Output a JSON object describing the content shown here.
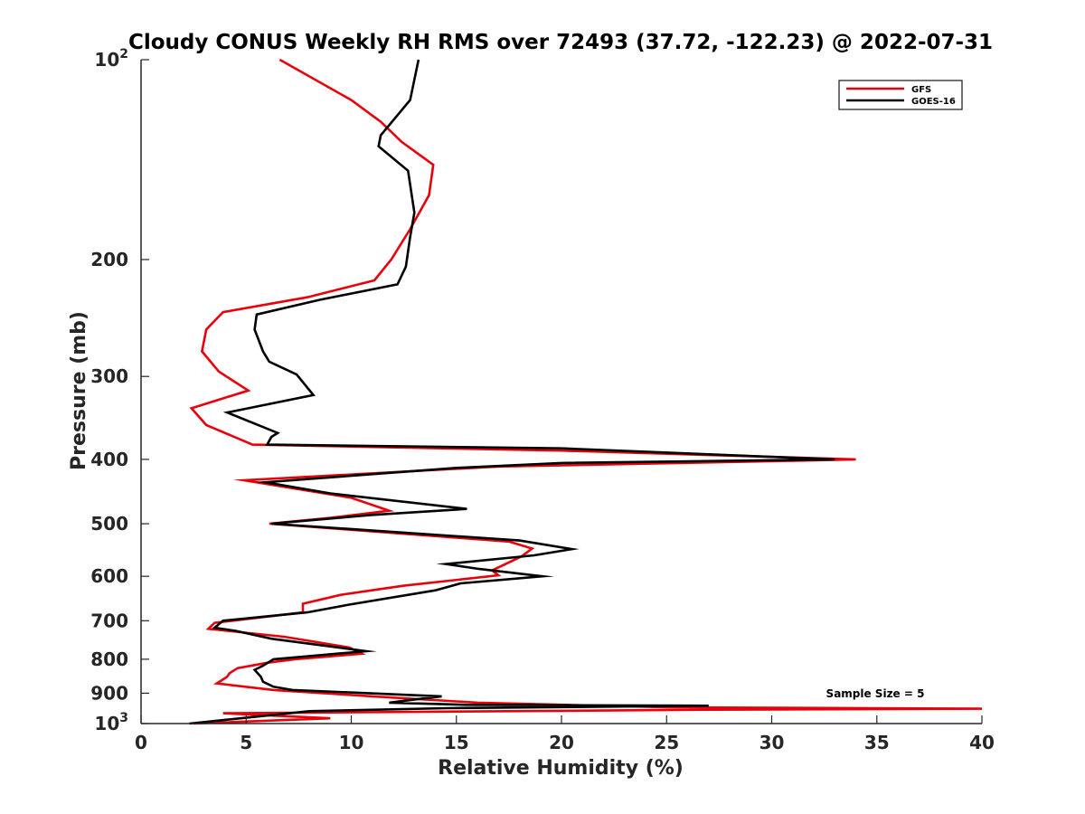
{
  "chart_data": {
    "type": "line",
    "title": "Cloudy CONUS Weekly RH RMS over 72493 (37.72, -122.23) @ 2022-07-31",
    "xlabel": "Relative Humidity (%)",
    "ylabel": "Pressure (mb)",
    "xlim": [
      0,
      40
    ],
    "ylim": [
      100,
      1000
    ],
    "y_scale": "log",
    "y_reversed": true,
    "x_ticks": [
      0,
      5,
      10,
      15,
      20,
      25,
      30,
      35,
      40
    ],
    "x_tick_labels": [
      "0",
      "5",
      "10",
      "15",
      "20",
      "25",
      "30",
      "35",
      "40"
    ],
    "y_ticks": [
      100,
      200,
      300,
      400,
      500,
      600,
      700,
      800,
      900,
      1000
    ],
    "y_tick_labels": [
      {
        "base": "10",
        "sup": "2"
      },
      {
        "base": "200",
        "sup": ""
      },
      {
        "base": "300",
        "sup": ""
      },
      {
        "base": "400",
        "sup": ""
      },
      {
        "base": "500",
        "sup": ""
      },
      {
        "base": "600",
        "sup": ""
      },
      {
        "base": "700",
        "sup": ""
      },
      {
        "base": "800",
        "sup": ""
      },
      {
        "base": "900",
        "sup": ""
      },
      {
        "base": "10",
        "sup": "3"
      }
    ],
    "grid": false,
    "legend_position": "top-right",
    "annotation": "Sample Size = 5",
    "series": [
      {
        "name": "GFS",
        "color": "#e8000b",
        "points": [
          [
            6.6,
            100
          ],
          [
            10,
            115
          ],
          [
            11.4,
            124
          ],
          [
            12.4,
            133
          ],
          [
            13.9,
            144
          ],
          [
            13.7,
            160
          ],
          [
            12.8,
            180
          ],
          [
            11.9,
            200
          ],
          [
            11.1,
            215
          ],
          [
            7.9,
            228
          ],
          [
            3.9,
            240
          ],
          [
            3.1,
            255
          ],
          [
            2.9,
            275
          ],
          [
            3.7,
            295
          ],
          [
            5.1,
            315
          ],
          [
            2.4,
            335
          ],
          [
            3.1,
            355
          ],
          [
            5.3,
            380
          ],
          [
            20,
            388
          ],
          [
            34,
            400
          ],
          [
            31,
            402
          ],
          [
            17,
            410
          ],
          [
            4.9,
            430
          ],
          [
            10,
            457
          ],
          [
            11.8,
            478
          ],
          [
            9,
            490
          ],
          [
            6.1,
            500
          ],
          [
            17.5,
            532
          ],
          [
            18.6,
            545
          ],
          [
            18.1,
            560
          ],
          [
            16.7,
            588
          ],
          [
            17,
            598
          ],
          [
            12.5,
            620
          ],
          [
            9.5,
            640
          ],
          [
            7.7,
            660
          ],
          [
            7.7,
            680
          ],
          [
            3.5,
            705
          ],
          [
            3.2,
            720
          ],
          [
            6.8,
            740
          ],
          [
            9.9,
            768
          ],
          [
            10.5,
            785
          ],
          [
            7.3,
            800
          ],
          [
            6,
            810
          ],
          [
            4.6,
            825
          ],
          [
            4.2,
            840
          ],
          [
            4.1,
            850
          ],
          [
            3.6,
            870
          ],
          [
            6.3,
            890
          ],
          [
            11,
            910
          ],
          [
            16,
            930
          ],
          [
            25,
            945
          ],
          [
            40,
            950
          ],
          [
            27,
            953
          ],
          [
            3.9,
            965
          ],
          [
            9,
            982
          ],
          [
            2.5,
            1000
          ]
        ]
      },
      {
        "name": "GOES-16",
        "color": "#000000",
        "points": [
          [
            13.2,
            100
          ],
          [
            12.8,
            115
          ],
          [
            11.4,
            130
          ],
          [
            11.3,
            135
          ],
          [
            12.7,
            147
          ],
          [
            13,
            170
          ],
          [
            12.8,
            185
          ],
          [
            12.6,
            205
          ],
          [
            12.2,
            218
          ],
          [
            8.5,
            230
          ],
          [
            5.5,
            242
          ],
          [
            5.4,
            255
          ],
          [
            5.8,
            275
          ],
          [
            6.1,
            285
          ],
          [
            7.4,
            298
          ],
          [
            8.2,
            320
          ],
          [
            4.1,
            340
          ],
          [
            6.5,
            365
          ],
          [
            6.2,
            370
          ],
          [
            6,
            380
          ],
          [
            20,
            385
          ],
          [
            33,
            400
          ],
          [
            20,
            405
          ],
          [
            15,
            412
          ],
          [
            5.9,
            433
          ],
          [
            9,
            450
          ],
          [
            15.5,
            475
          ],
          [
            11,
            485
          ],
          [
            6.2,
            500
          ],
          [
            18,
            530
          ],
          [
            20.5,
            546
          ],
          [
            18.7,
            558
          ],
          [
            14.5,
            575
          ],
          [
            16.1,
            585
          ],
          [
            19.1,
            600
          ],
          [
            15.2,
            615
          ],
          [
            14,
            630
          ],
          [
            9.9,
            662
          ],
          [
            7.9,
            680
          ],
          [
            3.9,
            700
          ],
          [
            3.5,
            717
          ],
          [
            4.5,
            725
          ],
          [
            6.2,
            745
          ],
          [
            10.7,
            778
          ],
          [
            6.3,
            800
          ],
          [
            5.8,
            818
          ],
          [
            5.4,
            830
          ],
          [
            5.7,
            850
          ],
          [
            5.8,
            865
          ],
          [
            6.3,
            880
          ],
          [
            7.2,
            890
          ],
          [
            14.3,
            910
          ],
          [
            13,
            920
          ],
          [
            11.8,
            930
          ],
          [
            15.5,
            937
          ],
          [
            27,
            940
          ],
          [
            14.5,
            948
          ],
          [
            8,
            958
          ],
          [
            2.3,
            1000
          ]
        ]
      }
    ]
  }
}
